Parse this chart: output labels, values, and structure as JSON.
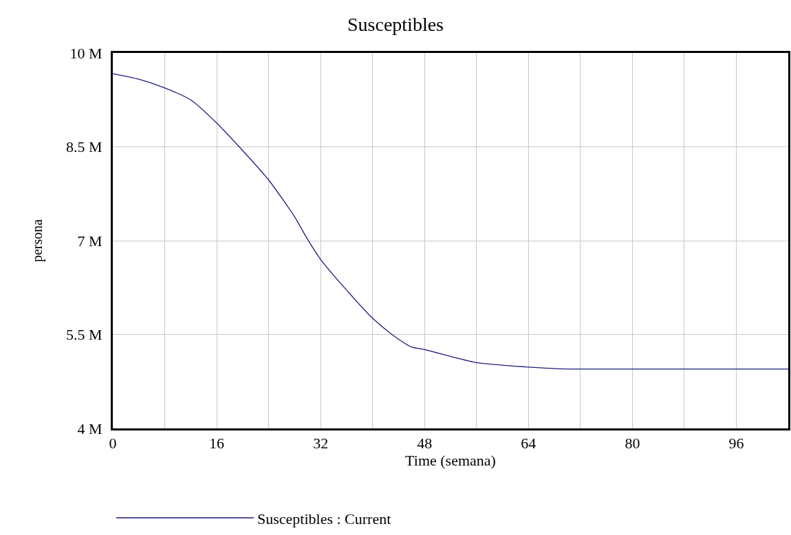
{
  "chart_data": {
    "type": "line",
    "title": "Susceptibles",
    "xlabel": "Time (semana)",
    "ylabel": "persona",
    "x": [
      0,
      4,
      8,
      12,
      16,
      20,
      24,
      28,
      30,
      32,
      36,
      40,
      43,
      46,
      48,
      52,
      56,
      60,
      64,
      70,
      80,
      90,
      104
    ],
    "series": [
      {
        "name": "Susceptibles : Current",
        "color": "#1c1c80",
        "values": [
          9670000,
          9580000,
          9440000,
          9250000,
          8880000,
          8440000,
          7970000,
          7380000,
          7020000,
          6700000,
          6210000,
          5760000,
          5500000,
          5300000,
          5260000,
          5150000,
          5050000,
          5010000,
          4980000,
          4950000,
          4950000,
          4950000,
          4950000
        ]
      }
    ],
    "xlim": [
      0,
      104
    ],
    "xticks": [
      0,
      {
        "value": 8,
        "label": null
      },
      16,
      {
        "value": 24,
        "label": null
      },
      32,
      {
        "value": 40,
        "label": null
      },
      48,
      {
        "value": 56,
        "label": null
      },
      64,
      {
        "value": 72,
        "label": null
      },
      80,
      {
        "value": 88,
        "label": null
      },
      96
    ],
    "ylim": [
      4000000,
      10000000
    ],
    "yticks": [
      {
        "value": 4000000,
        "label": "4 M"
      },
      {
        "value": 5500000,
        "label": "5.5 M"
      },
      {
        "value": 7000000,
        "label": "7 M"
      },
      {
        "value": 8500000,
        "label": "8.5 M"
      },
      {
        "value": 10000000,
        "label": "10 M"
      }
    ],
    "grid": true,
    "legend": "bottom",
    "marker": "none",
    "line_style": "solid"
  }
}
